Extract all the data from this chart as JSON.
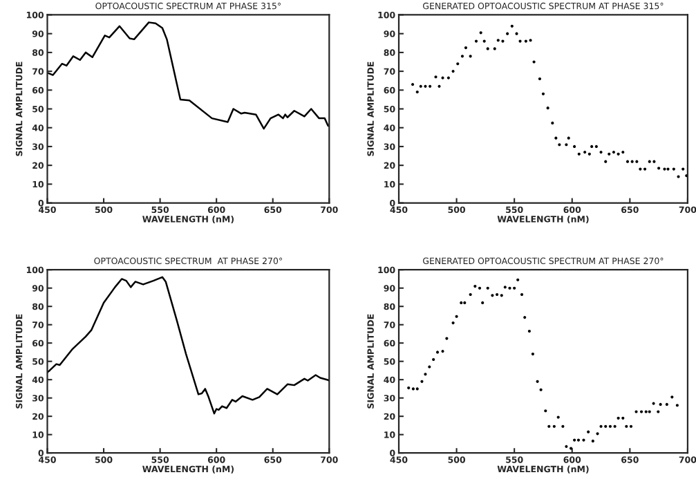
{
  "chart_data": [
    {
      "type": "line",
      "title": "OPTOACOUSTIC SPECTRUM AT PHASE 315°",
      "xlabel": "WAVELENGTH (nM)",
      "ylabel": "SIGNAL AMPLITUDE",
      "xlim": [
        450,
        700
      ],
      "ylim": [
        0,
        100
      ],
      "xticks": [
        450,
        500,
        550,
        600,
        650,
        700
      ],
      "yticks": [
        0,
        10,
        20,
        30,
        40,
        50,
        60,
        70,
        80,
        90,
        100
      ],
      "grid": false,
      "marker": "none",
      "line_style": "solid",
      "series": [
        {
          "color": "#000000",
          "x": [
            451,
            455,
            463,
            467,
            473,
            479,
            484,
            490,
            501,
            505,
            514,
            523,
            527,
            540,
            546,
            552,
            556,
            568,
            576,
            596,
            610,
            615,
            622,
            625,
            635,
            642,
            648,
            655,
            659,
            661,
            663,
            669,
            678,
            684,
            691,
            696,
            699
          ],
          "values": [
            69,
            68,
            74,
            73,
            78,
            76,
            80,
            77.5,
            89,
            88,
            94,
            87.5,
            87,
            96,
            95.5,
            93,
            87,
            55,
            54.5,
            45,
            43,
            50,
            47.5,
            48,
            47,
            39.5,
            45,
            47,
            45,
            47,
            45.5,
            49,
            46,
            50,
            45,
            45,
            41
          ]
        }
      ]
    },
    {
      "type": "scatter",
      "title": "GENERATED OPTOACOUSTIC SPECTRUM AT PHASE 315°",
      "xlabel": "WAVELENGTH (nM)",
      "ylabel": "SIGNAL AMPLITUDE",
      "xlim": [
        450,
        700
      ],
      "ylim": [
        0,
        100
      ],
      "xticks": [
        450,
        500,
        550,
        600,
        650,
        700
      ],
      "yticks": [
        0,
        10,
        20,
        30,
        40,
        50,
        60,
        70,
        80,
        90,
        100
      ],
      "grid": false,
      "marker": "circle",
      "series": [
        {
          "color": "#000000",
          "x": [
            462,
            466,
            469,
            473,
            477,
            482,
            485,
            488,
            493,
            497,
            501,
            505,
            508,
            512,
            517,
            521,
            524,
            527,
            533,
            536,
            540,
            544,
            548,
            552,
            555,
            560,
            564,
            567,
            572,
            575,
            579,
            583,
            586,
            589,
            595,
            597,
            602,
            606,
            611,
            615,
            617,
            621,
            625,
            629,
            632,
            636,
            640,
            644,
            648,
            652,
            656,
            659,
            663,
            667,
            671,
            675,
            680,
            683,
            688,
            692,
            696,
            699
          ],
          "values": [
            63,
            59,
            62,
            62,
            62,
            67,
            62,
            66.5,
            66.5,
            70,
            74,
            78,
            82.5,
            78,
            86,
            90.5,
            86,
            82,
            82,
            86.5,
            86,
            90,
            94,
            90,
            86,
            86,
            86.5,
            75,
            66,
            58,
            50.5,
            42.5,
            34.5,
            31,
            31,
            34.5,
            30,
            26,
            27,
            26,
            30,
            30,
            27,
            22,
            26,
            27,
            26,
            27,
            22,
            22,
            22,
            18,
            18,
            22,
            22,
            18.5,
            18,
            18,
            18,
            14,
            18,
            14.5
          ]
        }
      ]
    },
    {
      "type": "line",
      "title": "OPTOACOUSTIC SPECTRUM  AT PHASE 270°",
      "xlabel": "WAVELENGTH (nM)",
      "ylabel": "SIGNAL AMPLITUDE",
      "xlim": [
        450,
        700
      ],
      "ylim": [
        0,
        100
      ],
      "xticks": [
        450,
        500,
        550,
        600,
        650,
        700
      ],
      "yticks": [
        0,
        10,
        20,
        30,
        40,
        50,
        60,
        70,
        80,
        90,
        100
      ],
      "grid": false,
      "marker": "none",
      "line_style": "solid",
      "series": [
        {
          "color": "#000000",
          "x": [
            450,
            452,
            458,
            461,
            472,
            484,
            489,
            500,
            510,
            516,
            520,
            524,
            528,
            535,
            544,
            552,
            555,
            565,
            573,
            584,
            587,
            590,
            593,
            598,
            600,
            602,
            605,
            609,
            614,
            617,
            623,
            632,
            638,
            645,
            654,
            663,
            669,
            678,
            681,
            688,
            692,
            698,
            700
          ],
          "values": [
            44,
            45,
            48.5,
            48,
            56.5,
            63.5,
            67,
            82,
            90.5,
            95,
            94,
            90.5,
            93.5,
            92,
            94,
            96,
            93.5,
            72,
            54,
            32,
            32.5,
            35,
            30.5,
            21.5,
            24,
            23.5,
            25.5,
            24.5,
            29,
            28,
            31,
            29,
            30.5,
            35,
            32,
            37.5,
            37,
            40.5,
            39.5,
            42.5,
            41,
            40,
            39.5
          ]
        }
      ]
    },
    {
      "type": "scatter",
      "title": "GENERATED OPTOACOUSTIC SPECTRUM AT PHASE 270°",
      "xlabel": "WAVELENGTH (nM)",
      "ylabel": "SIGNAL AMPLITUDE",
      "xlim": [
        450,
        700
      ],
      "ylim": [
        0,
        100
      ],
      "xticks": [
        450,
        500,
        550,
        600,
        650,
        700
      ],
      "yticks": [
        0,
        10,
        20,
        30,
        40,
        50,
        60,
        70,
        80,
        90,
        100
      ],
      "grid": false,
      "marker": "circle",
      "series": [
        {
          "color": "#000000",
          "x": [
            458.5,
            462.5,
            466,
            470,
            473,
            476.5,
            480,
            483.5,
            488,
            491.5,
            497,
            500,
            504,
            507,
            512,
            516,
            520,
            522.5,
            527,
            531,
            535,
            539,
            542,
            546,
            550,
            553,
            556.5,
            559,
            563,
            566,
            570,
            573,
            577,
            580,
            584.5,
            588,
            592,
            595,
            599,
            602,
            605.5,
            610,
            614,
            618,
            622,
            625,
            629,
            633,
            637,
            640,
            644,
            647,
            651,
            655.5,
            660,
            664,
            667,
            670.5,
            674.5,
            676.5,
            682,
            686.5,
            691
          ],
          "values": [
            35.5,
            35,
            35,
            39,
            43,
            47,
            51,
            55,
            55.5,
            62.5,
            71,
            74.5,
            82,
            82,
            86.5,
            91,
            90,
            82,
            90,
            86,
            86.5,
            86,
            90.5,
            90,
            90,
            94.5,
            86.5,
            74,
            66.5,
            54,
            39,
            34.5,
            23,
            14.5,
            14.5,
            19.5,
            14.5,
            3.5,
            2.5,
            7,
            7,
            7,
            11.5,
            6.5,
            10.5,
            14.5,
            14.5,
            14.5,
            14.5,
            19,
            19,
            14.5,
            14.5,
            22.5,
            22.5,
            22.5,
            22.5,
            27,
            22.5,
            26.5,
            26.5,
            30.5,
            26
          ]
        }
      ]
    }
  ]
}
